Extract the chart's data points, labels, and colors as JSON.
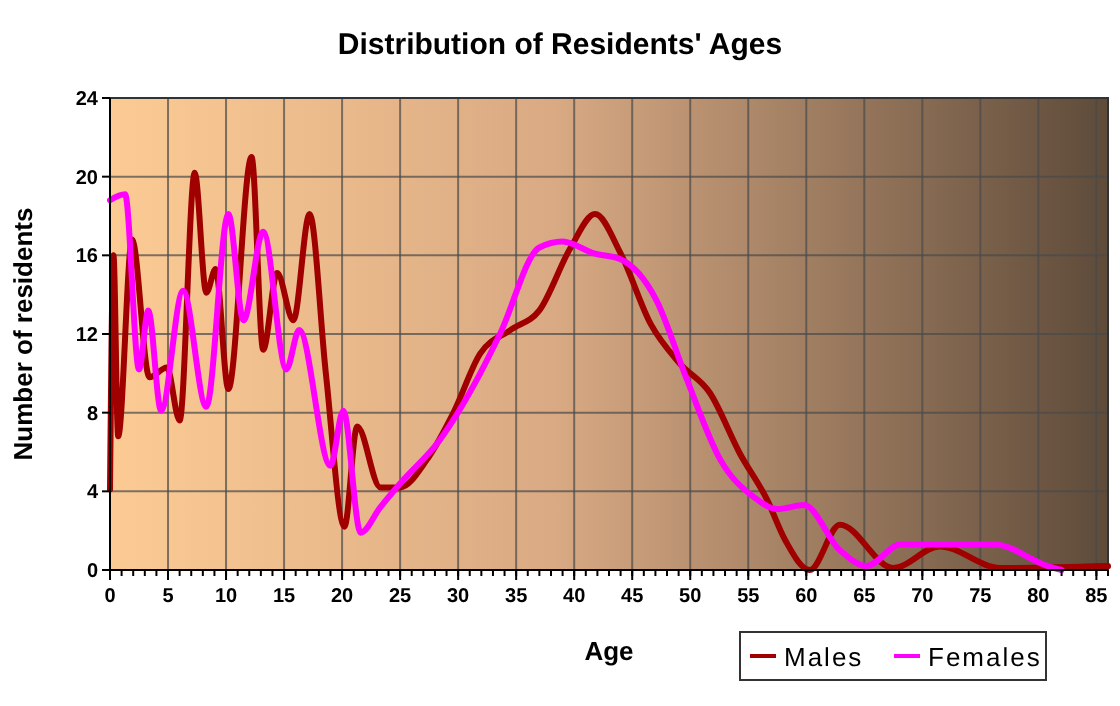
{
  "chart_data": {
    "type": "line",
    "title": "Distribution of Residents' Ages",
    "xlabel": "Age",
    "ylabel": "Number of residents",
    "xlim": [
      0,
      86
    ],
    "xticks": [
      0,
      5,
      10,
      15,
      20,
      25,
      30,
      35,
      40,
      45,
      50,
      55,
      60,
      65,
      70,
      75,
      80,
      85
    ],
    "ylim": [
      0,
      24
    ],
    "yticks": [
      0,
      4,
      8,
      12,
      16,
      20,
      24
    ],
    "grid": true,
    "legend": "bottom",
    "line_style": "solid",
    "marker": "none",
    "series": [
      {
        "name": "Males",
        "color": "#a00000",
        "x": [
          0,
          0.3,
          0.7,
          1.9,
          3.4,
          4.9,
          6,
          7.3,
          8.3,
          9.1,
          10.2,
          12.2,
          13.2,
          14.4,
          15.8,
          17.2,
          18.6,
          20.2,
          21.3,
          23.3,
          25,
          27.3,
          29.6,
          31.9,
          34.5,
          37,
          39.7,
          41.8,
          44,
          46.6,
          49.1,
          51.7,
          54.3,
          56.6,
          58.2,
          60.3,
          62.9,
          67.5,
          71.5,
          76.7,
          86
        ],
        "values": [
          4.1,
          16,
          6.8,
          16.8,
          9.8,
          10.3,
          7.6,
          20.2,
          14.1,
          15.3,
          9.2,
          21,
          11.2,
          15.1,
          12.7,
          18.1,
          10,
          2.2,
          7.3,
          4.2,
          4.2,
          5.6,
          8,
          11,
          12.2,
          13.2,
          16.4,
          18.1,
          16.1,
          12.5,
          10.5,
          9,
          5.9,
          3.6,
          1.5,
          0,
          2.3,
          0.1,
          1.2,
          0.1,
          0.2
        ]
      },
      {
        "name": "Females",
        "color": "#ff00ff",
        "x": [
          0,
          1.3,
          2.5,
          3.3,
          4.4,
          6.3,
          8.3,
          10.2,
          11.5,
          13.2,
          15.2,
          16.3,
          19,
          20.1,
          21.6,
          23.3,
          25,
          28.4,
          31.9,
          33.6,
          37,
          39,
          41.7,
          44,
          47.1,
          49.7,
          52.6,
          55.5,
          57.5,
          59.8,
          62.9,
          65.2,
          68.1,
          76.2,
          80.8,
          82
        ],
        "values": [
          18.8,
          19.1,
          10.2,
          13.2,
          8.1,
          14.2,
          8.3,
          18.1,
          12.7,
          17.2,
          10.2,
          12.2,
          5.3,
          8.1,
          1.9,
          3.2,
          4.4,
          6.6,
          10,
          12,
          16.4,
          16.7,
          16.1,
          15.8,
          13.7,
          9.7,
          5.6,
          3.7,
          3.1,
          3.3,
          1,
          0.2,
          1.3,
          1.3,
          0.2,
          0
        ]
      }
    ]
  }
}
